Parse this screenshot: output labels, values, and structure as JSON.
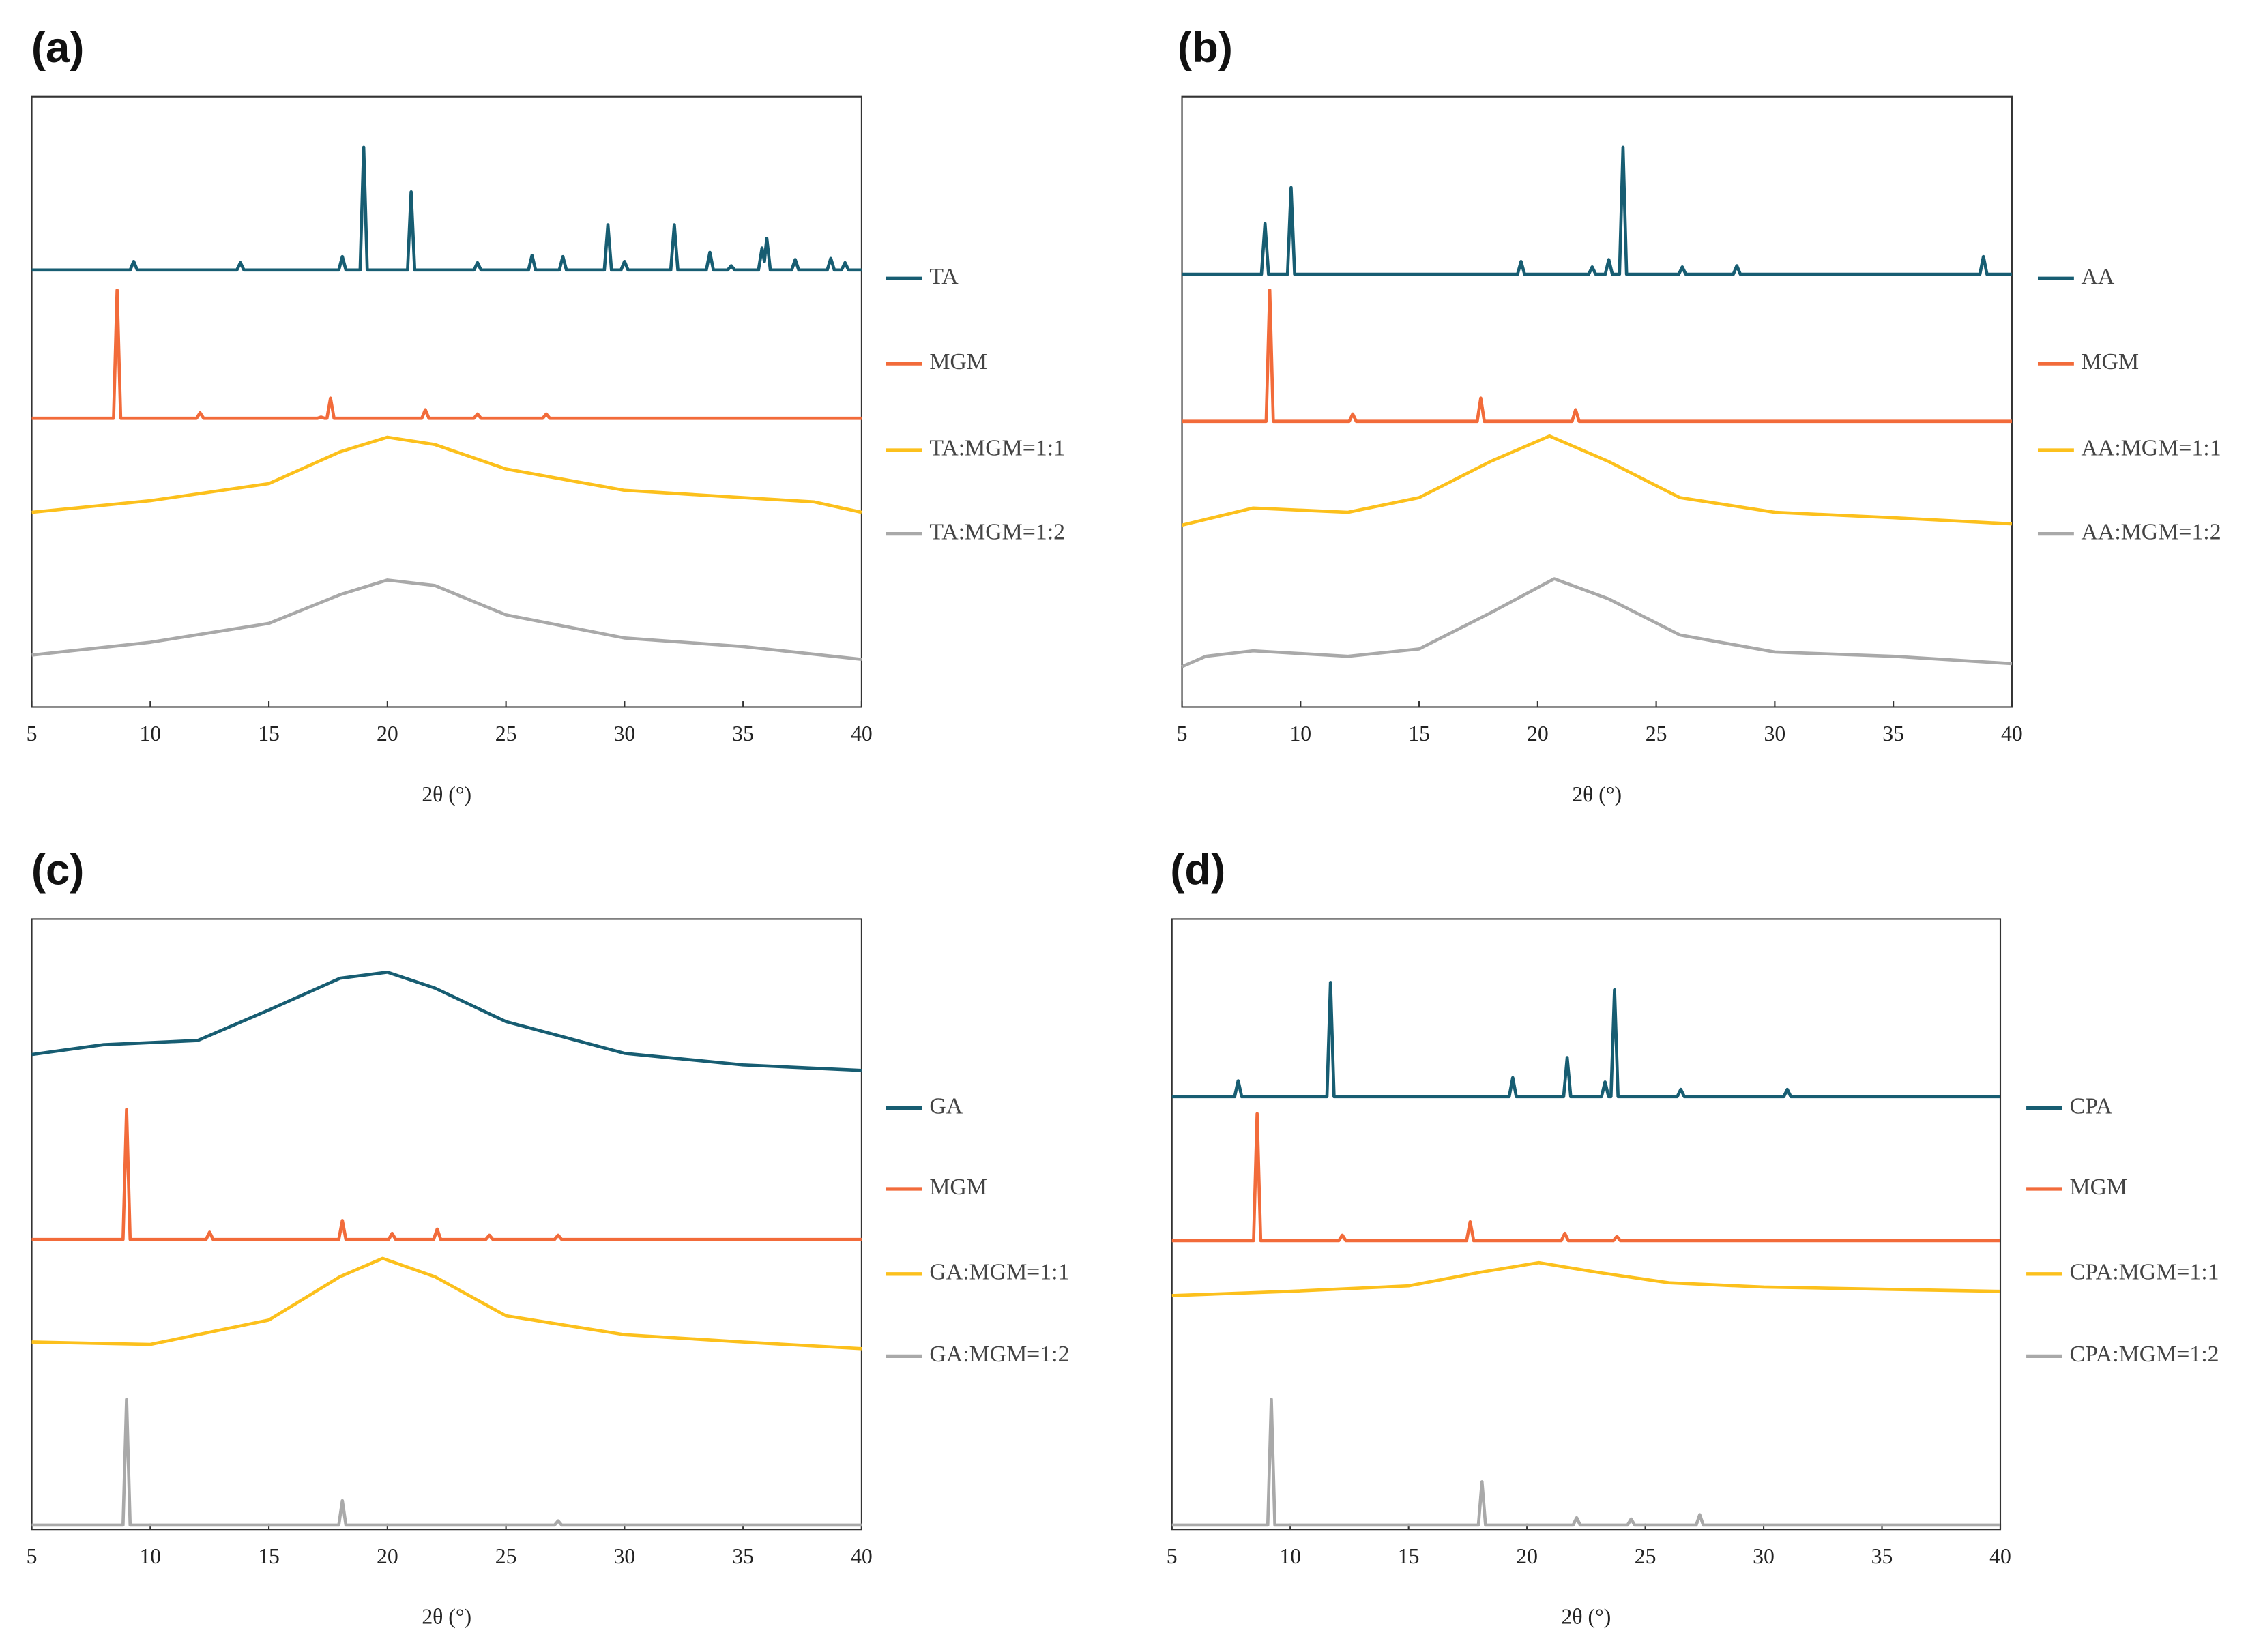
{
  "chart_data": [
    {
      "type": "line",
      "panel_label": "(a)",
      "x_label": "2θ (°)",
      "xlim": [
        5,
        40
      ],
      "xticks": [
        5,
        10,
        15,
        20,
        25,
        30,
        35,
        40
      ],
      "ylim": [
        0,
        100
      ],
      "legend": "right",
      "series": [
        {
          "name": "TA",
          "color": "#175d72",
          "x": [
            5,
            9.15,
            9.3,
            9.45,
            13.65,
            13.8,
            13.95,
            17.95,
            18.1,
            18.25,
            18.85,
            19.0,
            19.15,
            20.85,
            21.0,
            21.15,
            23.65,
            23.8,
            23.95,
            25.95,
            26.1,
            26.25,
            27.25,
            27.4,
            27.55,
            29.15,
            29.3,
            29.45,
            29.85,
            30.0,
            30.15,
            31.95,
            32.1,
            32.25,
            33.45,
            33.6,
            33.75,
            34.35,
            34.5,
            34.65,
            35.65,
            35.8,
            35.9,
            36.0,
            36.15,
            37.05,
            37.2,
            37.35,
            38.55,
            38.7,
            38.85,
            39.15,
            39.3,
            39.45,
            40
          ],
          "values": [
            71.6,
            71.6,
            73,
            71.6,
            71.6,
            72.8,
            71.6,
            71.6,
            73.8,
            71.6,
            71.6,
            91.7,
            71.6,
            71.6,
            84.4,
            71.6,
            71.6,
            72.8,
            71.6,
            71.6,
            74,
            71.6,
            71.6,
            73.8,
            71.6,
            71.6,
            79,
            71.6,
            71.6,
            73,
            71.6,
            71.6,
            79,
            71.6,
            71.6,
            74.5,
            71.6,
            71.6,
            72.3,
            71.6,
            71.6,
            75.2,
            73,
            76.8,
            71.6,
            71.6,
            73.3,
            71.6,
            71.6,
            73.5,
            71.6,
            71.6,
            72.8,
            71.6,
            71.6
          ]
        },
        {
          "name": "MGM",
          "color": "#f26b3a",
          "x": [
            5,
            8.45,
            8.6,
            8.75,
            11.95,
            12.1,
            12.25,
            17.05,
            17.2,
            17.35,
            17.45,
            17.6,
            17.75,
            21.45,
            21.6,
            21.75,
            23.65,
            23.8,
            23.95,
            26.55,
            26.7,
            26.85,
            40
          ],
          "values": [
            47.3,
            47.3,
            68.3,
            47.3,
            47.3,
            48.2,
            47.3,
            47.3,
            47.5,
            47.3,
            47.3,
            50.6,
            47.3,
            47.3,
            48.7,
            47.3,
            47.3,
            48,
            47.3,
            47.3,
            48,
            47.3,
            47.3
          ]
        },
        {
          "name": "TA:MGM=1:1",
          "color": "#fcc01c",
          "x": [
            5,
            10,
            15,
            18,
            20,
            22,
            25,
            30,
            35,
            38,
            40
          ],
          "values": [
            31.9,
            33.8,
            36.6,
            41.8,
            44.2,
            43,
            39,
            35.5,
            34.3,
            33.6,
            31.9
          ]
        },
        {
          "name": "TA:MGM=1:2",
          "color": "#a9a9a9",
          "x": [
            5,
            10,
            15,
            18,
            20,
            22,
            25,
            30,
            35,
            40
          ],
          "values": [
            8.5,
            10.6,
            13.7,
            18.4,
            20.8,
            19.9,
            15.1,
            11.3,
            9.9,
            7.8
          ]
        }
      ]
    },
    {
      "type": "line",
      "panel_label": "(b)",
      "x_label": "2θ (°)",
      "xlim": [
        5,
        40
      ],
      "xticks": [
        5,
        10,
        15,
        20,
        25,
        30,
        35,
        40
      ],
      "ylim": [
        0,
        100
      ],
      "legend": "right",
      "series": [
        {
          "name": "AA",
          "color": "#175d72",
          "x": [
            5,
            8.35,
            8.5,
            8.65,
            9.45,
            9.6,
            9.75,
            19.15,
            19.3,
            19.45,
            22.15,
            22.3,
            22.45,
            22.85,
            23.0,
            23.15,
            23.45,
            23.6,
            23.75,
            25.95,
            26.1,
            26.25,
            28.25,
            28.4,
            28.55,
            38.65,
            38.8,
            38.95,
            40
          ],
          "values": [
            70.9,
            70.9,
            79.2,
            70.9,
            70.9,
            85.1,
            70.9,
            70.9,
            73,
            70.9,
            70.9,
            72.1,
            70.9,
            70.9,
            73.3,
            70.9,
            70.9,
            91.7,
            70.9,
            70.9,
            72.1,
            70.9,
            70.9,
            72.3,
            70.9,
            70.9,
            73.8,
            70.9,
            70.9
          ]
        },
        {
          "name": "MGM",
          "color": "#f26b3a",
          "x": [
            5,
            8.55,
            8.7,
            8.85,
            12.05,
            12.2,
            12.35,
            17.45,
            17.6,
            17.75,
            21.45,
            21.6,
            21.75,
            40
          ],
          "values": [
            46.8,
            46.8,
            68.3,
            46.8,
            46.8,
            48,
            46.8,
            46.8,
            50.6,
            46.8,
            46.8,
            48.7,
            46.8,
            46.8
          ]
        },
        {
          "name": "AA:MGM=1:1",
          "color": "#fcc01c",
          "x": [
            5,
            8,
            12,
            15,
            18,
            20.5,
            23,
            26,
            30,
            35,
            40
          ],
          "values": [
            29.8,
            32.6,
            31.9,
            34.3,
            40.2,
            44.4,
            40.2,
            34.3,
            31.9,
            31,
            30
          ]
        },
        {
          "name": "AA:MGM=1:2",
          "color": "#a9a9a9",
          "x": [
            5,
            6,
            8,
            12,
            15,
            18,
            20.7,
            23,
            26,
            30,
            35,
            40
          ],
          "values": [
            6.6,
            8.3,
            9.2,
            8.3,
            9.5,
            15.4,
            21,
            17.7,
            11.8,
            9,
            8.3,
            7.1
          ]
        }
      ]
    },
    {
      "type": "line",
      "panel_label": "(c)",
      "x_label": "2θ (°)",
      "xlim": [
        5,
        40
      ],
      "xticks": [
        5,
        10,
        15,
        20,
        25,
        30,
        35,
        40
      ],
      "ylim": [
        0,
        100
      ],
      "legend": "right",
      "series": [
        {
          "name": "GA",
          "color": "#175d72",
          "x": [
            5,
            8,
            12,
            15,
            18,
            20,
            22,
            25,
            30,
            35,
            40
          ],
          "values": [
            77.8,
            79.4,
            80.1,
            85.1,
            90.3,
            91.3,
            88.7,
            83.2,
            78,
            76.1,
            75.2
          ]
        },
        {
          "name": "MGM",
          "color": "#f26b3a",
          "x": [
            5,
            8.85,
            9.0,
            9.15,
            12.35,
            12.5,
            12.65,
            17.95,
            18.1,
            18.25,
            20.05,
            20.2,
            20.35,
            21.95,
            22.1,
            22.25,
            24.15,
            24.3,
            24.45,
            27.05,
            27.2,
            27.35,
            40
          ],
          "values": [
            47.5,
            47.5,
            68.8,
            47.5,
            47.5,
            48.7,
            47.5,
            47.5,
            50.6,
            47.5,
            47.5,
            48.5,
            47.5,
            47.5,
            49.2,
            47.5,
            47.5,
            48.2,
            47.5,
            47.5,
            48.2,
            47.5,
            47.5
          ]
        },
        {
          "name": "GA:MGM=1:1",
          "color": "#fcc01c",
          "x": [
            5,
            10,
            15,
            18,
            19.8,
            22,
            25,
            30,
            35,
            40
          ],
          "values": [
            30.7,
            30.3,
            34.3,
            41.4,
            44.4,
            41.4,
            35,
            31.9,
            30.7,
            29.6
          ]
        },
        {
          "name": "GA:MGM=1:2",
          "color": "#a9a9a9",
          "x": [
            5,
            8.85,
            9.0,
            9.15,
            17.95,
            18.1,
            18.25,
            27.05,
            27.2,
            27.35,
            40
          ],
          "values": [
            0.7,
            0.7,
            21.3,
            0.7,
            0.7,
            4.7,
            0.7,
            0.7,
            1.4,
            0.7,
            0.7
          ]
        }
      ]
    },
    {
      "type": "line",
      "panel_label": "(d)",
      "x_label": "2θ (°)",
      "xlim": [
        5,
        40
      ],
      "xticks": [
        5,
        10,
        15,
        20,
        25,
        30,
        35,
        40
      ],
      "ylim": [
        0,
        100
      ],
      "legend": "right",
      "series": [
        {
          "name": "CPA",
          "color": "#175d72",
          "x": [
            5,
            7.65,
            7.8,
            7.95,
            11.55,
            11.7,
            11.85,
            19.25,
            19.4,
            19.55,
            21.55,
            21.7,
            21.85,
            23.15,
            23.3,
            23.45,
            23.55,
            23.7,
            23.85,
            26.35,
            26.5,
            26.65,
            30.85,
            31.0,
            31.15,
            40
          ],
          "values": [
            70.9,
            70.9,
            73.5,
            70.9,
            70.9,
            89.6,
            70.9,
            70.9,
            74,
            70.9,
            70.9,
            77.3,
            70.9,
            70.9,
            73.3,
            70.9,
            70.9,
            88.4,
            70.9,
            70.9,
            72.1,
            70.9,
            70.9,
            72.1,
            70.9,
            70.9
          ]
        },
        {
          "name": "MGM",
          "color": "#f26b3a",
          "x": [
            5,
            8.45,
            8.6,
            8.75,
            12.05,
            12.2,
            12.35,
            17.45,
            17.6,
            17.75,
            21.45,
            21.6,
            21.75,
            23.65,
            23.8,
            23.95,
            40
          ],
          "values": [
            47.3,
            47.3,
            68.1,
            47.3,
            47.3,
            48.2,
            47.3,
            47.3,
            50.4,
            47.3,
            47.3,
            48.5,
            47.3,
            47.3,
            48,
            47.3,
            47.3
          ]
        },
        {
          "name": "CPA:MGM=1:1",
          "color": "#fcc01c",
          "x": [
            5,
            10,
            15,
            18,
            20.5,
            23,
            26,
            30,
            40
          ],
          "values": [
            38.3,
            39,
            39.9,
            42.1,
            43.7,
            42.1,
            40.4,
            39.7,
            39
          ]
        },
        {
          "name": "CPA:MGM=1:2",
          "color": "#a9a9a9",
          "x": [
            5,
            9.05,
            9.2,
            9.35,
            17.95,
            18.1,
            18.25,
            21.95,
            22.1,
            22.25,
            24.25,
            24.4,
            24.55,
            27.15,
            27.3,
            27.45,
            40
          ],
          "values": [
            0.7,
            0.7,
            21.3,
            0.7,
            0.7,
            7.8,
            0.7,
            0.7,
            1.9,
            0.7,
            0.7,
            1.7,
            0.7,
            0.7,
            2.4,
            0.7,
            0.7
          ]
        }
      ]
    }
  ]
}
